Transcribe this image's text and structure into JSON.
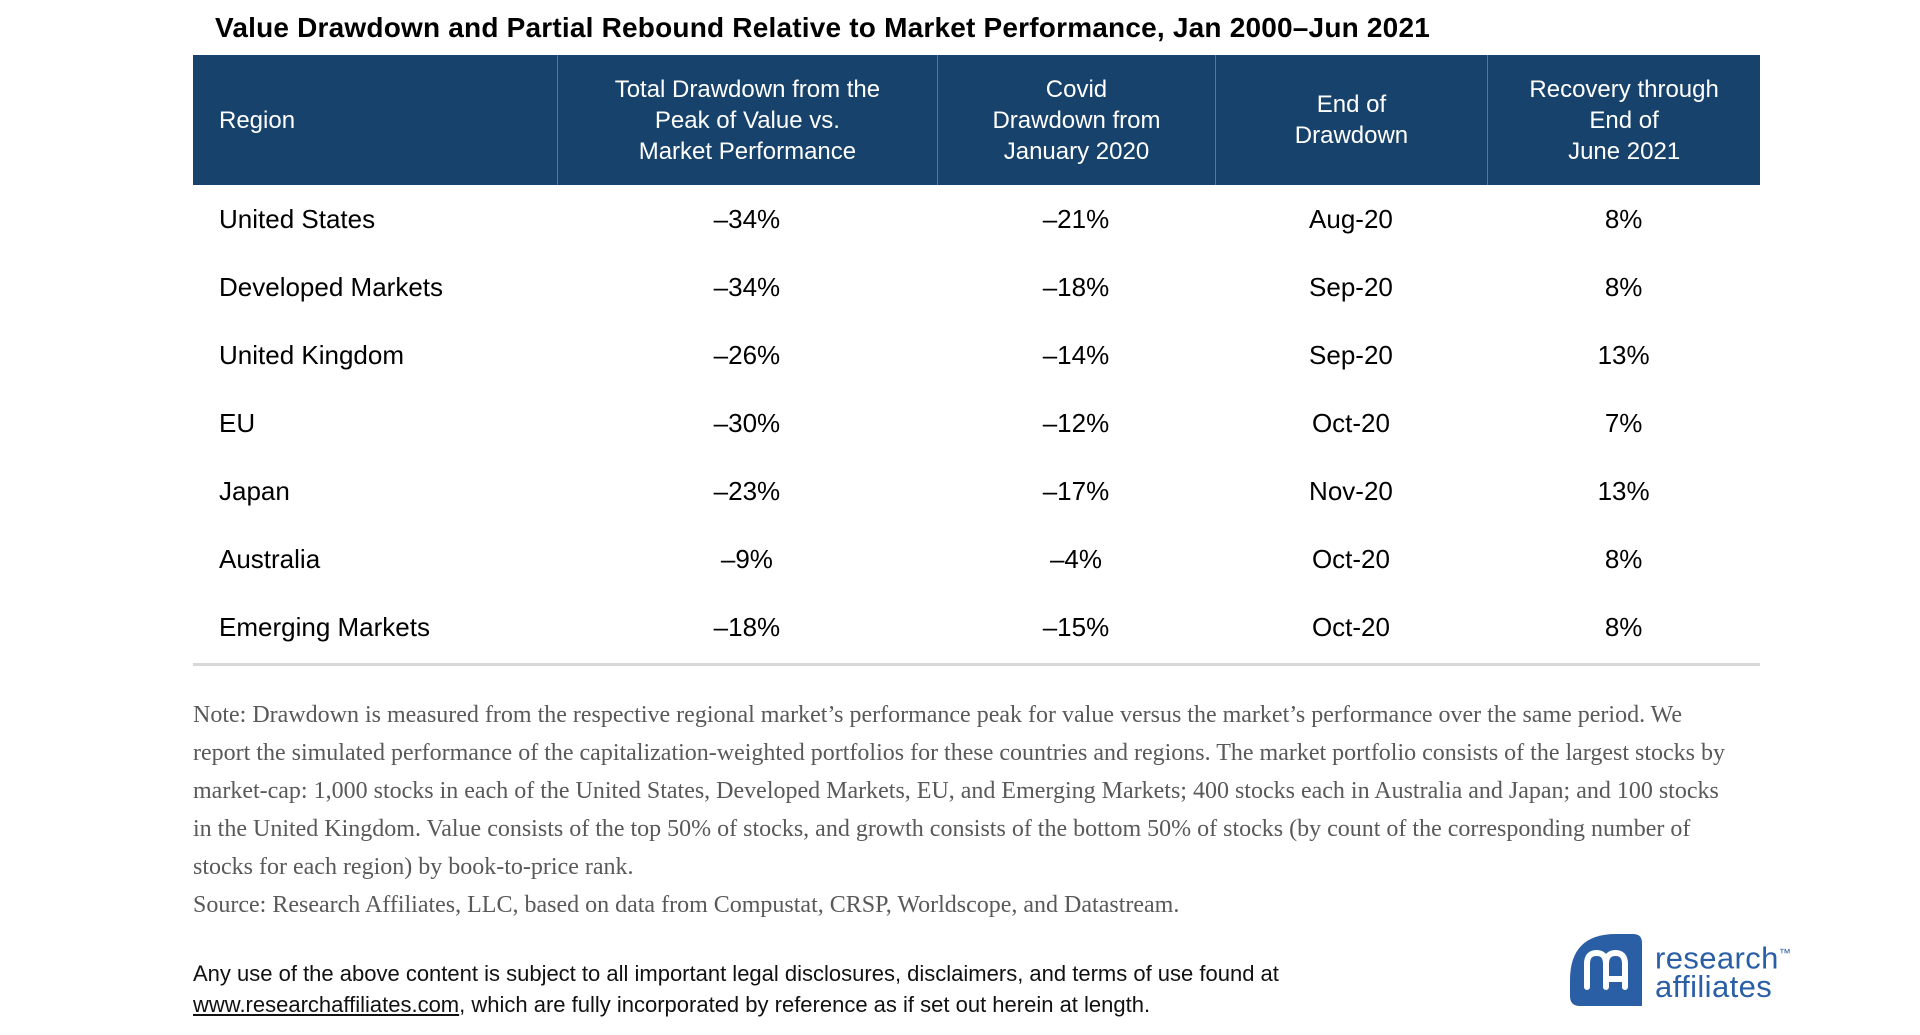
{
  "title": "Value Drawdown and Partial Rebound Relative to Market Performance, Jan 2000–Jun 2021",
  "table": {
    "columns": [
      {
        "label": "Region"
      },
      {
        "label": "Total Drawdown from the\nPeak of Value vs.\nMarket Performance"
      },
      {
        "label": "Covid\nDrawdown from\nJanuary 2020"
      },
      {
        "label": "End of\nDrawdown"
      },
      {
        "label": "Recovery through\nEnd of\nJune 2021"
      }
    ],
    "rows": [
      {
        "region": "United States",
        "total_drawdown": "–34%",
        "covid_drawdown": "–21%",
        "end_of_drawdown": "Aug-20",
        "recovery": "8%"
      },
      {
        "region": "Developed Markets",
        "total_drawdown": "–34%",
        "covid_drawdown": "–18%",
        "end_of_drawdown": "Sep-20",
        "recovery": "8%"
      },
      {
        "region": "United Kingdom",
        "total_drawdown": "–26%",
        "covid_drawdown": "–14%",
        "end_of_drawdown": "Sep-20",
        "recovery": "13%"
      },
      {
        "region": "EU",
        "total_drawdown": "–30%",
        "covid_drawdown": "–12%",
        "end_of_drawdown": "Oct-20",
        "recovery": "7%"
      },
      {
        "region": "Japan",
        "total_drawdown": "–23%",
        "covid_drawdown": "–17%",
        "end_of_drawdown": "Nov-20",
        "recovery": "13%"
      },
      {
        "region": "Australia",
        "total_drawdown": "–9%",
        "covid_drawdown": "–4%",
        "end_of_drawdown": "Oct-20",
        "recovery": "8%"
      },
      {
        "region": "Emerging Markets",
        "total_drawdown": "–18%",
        "covid_drawdown": "–15%",
        "end_of_drawdown": "Oct-20",
        "recovery": "8%"
      }
    ]
  },
  "note": "Note: Drawdown is measured from the respective regional market’s performance peak for value versus the market’s performance over the same period. We report the simulated performance of the capitalization-weighted portfolios for these countries and regions. The market portfolio consists of the largest stocks by market-cap: 1,000 stocks in each of the United States, Developed Markets, EU, and Emerging Markets; 400 stocks each in Australia and Japan; and 100 stocks in the United Kingdom. Value consists of the top 50% of stocks, and growth consists of the bottom 50% of stocks (by count of the corresponding number of stocks for each region) by book-to-price rank.",
  "source": "Source: Research Affiliates, LLC, based on data from Compustat, CRSP, Worldscope, and Datastream.",
  "disclaimer": {
    "line1": "Any use of the above content is subject to all important legal disclosures, disclaimers, and terms of use found at",
    "link": "www.researchaffiliates.com",
    "after_link": ", which are fully incorporated by reference as if set out herein at length."
  },
  "logo": {
    "word1": "research",
    "word2": "affiliates",
    "tm": "™"
  },
  "colors": {
    "header_bg": "#17426B",
    "header_text": "#FFFFFF",
    "body_text": "#000000",
    "note_gray": "#595959",
    "rule_gray": "#D8D8D8",
    "logo_blue": "#2A5FA5"
  },
  "chart_data": {
    "type": "table",
    "title": "Value Drawdown and Partial Rebound Relative to Market Performance, Jan 2000–Jun 2021",
    "columns": [
      "Region",
      "Total Drawdown from the Peak of Value vs. Market Performance",
      "Covid Drawdown from January 2020",
      "End of Drawdown",
      "Recovery through End of June 2021"
    ],
    "rows": [
      [
        "United States",
        "–34%",
        "–21%",
        "Aug-20",
        "8%"
      ],
      [
        "Developed Markets",
        "–34%",
        "–18%",
        "Sep-20",
        "8%"
      ],
      [
        "United Kingdom",
        "–26%",
        "–14%",
        "Sep-20",
        "13%"
      ],
      [
        "EU",
        "–30%",
        "–12%",
        "Oct-20",
        "7%"
      ],
      [
        "Japan",
        "–23%",
        "–17%",
        "Nov-20",
        "13%"
      ],
      [
        "Australia",
        "–9%",
        "–4%",
        "Oct-20",
        "8%"
      ],
      [
        "Emerging Markets",
        "–18%",
        "–15%",
        "Oct-20",
        "8%"
      ]
    ],
    "notes": "Drawdown measured from each regional market’s value performance peak vs. the market over the same period; simulated cap-weighted portfolios; value = top 50% of stocks, growth = bottom 50% by book-to-price rank.",
    "source": "Research Affiliates, LLC, based on data from Compustat, CRSP, Worldscope, and Datastream."
  }
}
